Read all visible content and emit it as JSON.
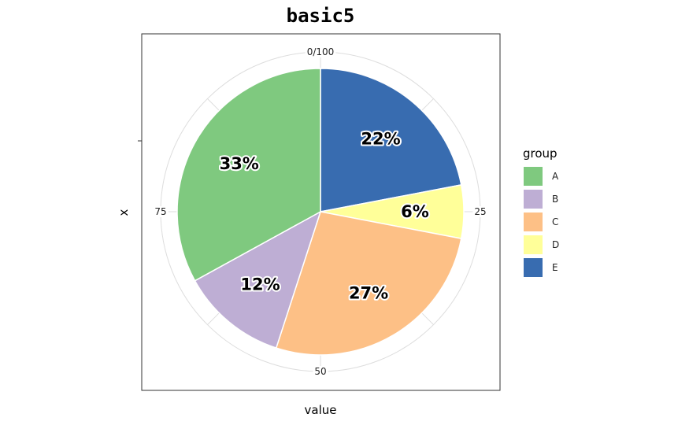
{
  "chart_data": {
    "type": "pie",
    "title": "basic5",
    "xlabel": "value",
    "ylabel": "x",
    "angular_ticks": [
      {
        "value": 0,
        "label": "0/100"
      },
      {
        "value": 25,
        "label": "25"
      },
      {
        "value": 50,
        "label": "50"
      },
      {
        "value": 75,
        "label": "75"
      }
    ],
    "legend": {
      "title": "group",
      "position": "right"
    },
    "slices": [
      {
        "group": "A",
        "value": 33,
        "label": "33%",
        "color": "#7FC97F"
      },
      {
        "group": "B",
        "value": 12,
        "label": "12%",
        "color": "#BEAED4"
      },
      {
        "group": "C",
        "value": 27,
        "label": "27%",
        "color": "#FDC086"
      },
      {
        "group": "D",
        "value": 6,
        "label": "6%",
        "color": "#FFFF99"
      },
      {
        "group": "E",
        "value": 22,
        "label": "22%",
        "color": "#386CB0"
      }
    ],
    "stack_order": [
      "E",
      "D",
      "C",
      "B",
      "A"
    ],
    "total": 100
  }
}
